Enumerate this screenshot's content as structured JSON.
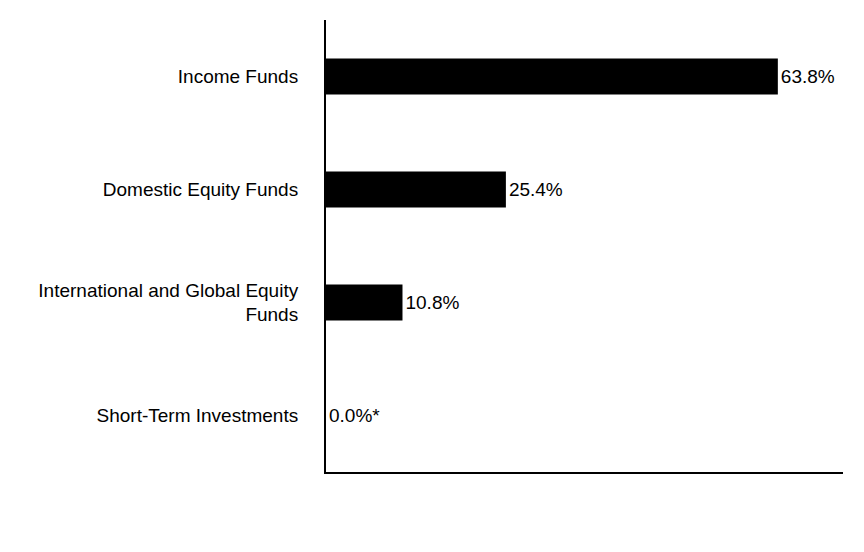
{
  "chart_data": {
    "type": "bar",
    "orientation": "horizontal",
    "categories": [
      "Income Funds",
      "Domestic Equity Funds",
      "International and Global Equity Funds",
      "Short-Term Investments"
    ],
    "values": [
      63.8,
      25.4,
      10.8,
      0.0
    ],
    "value_labels": [
      "63.8%",
      "25.4%",
      "10.8%",
      "0.0%*"
    ],
    "color": "#000000",
    "xlim": [
      0,
      73
    ],
    "grid": false,
    "data_labels": true,
    "tick_labels": "y"
  }
}
